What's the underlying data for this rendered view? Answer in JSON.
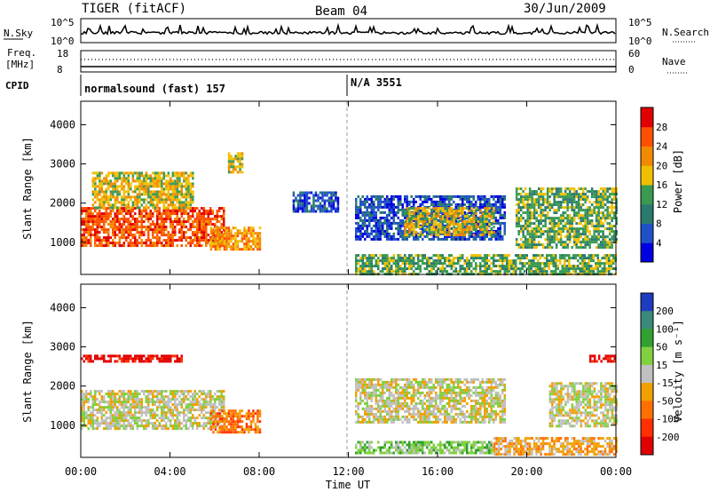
{
  "header": {
    "radar": "TIGER (fitACF)",
    "beam": "Beam 04",
    "date": "30/Jun/2009"
  },
  "status_panels": {
    "nsky_label": "N.Sky",
    "nsky_ticks": [
      "10^5",
      "10^0"
    ],
    "nsearch_label": "N.Search",
    "nsearch_ticks": [
      "10^5",
      "10^0"
    ],
    "freq_label_line1": "Freq.",
    "freq_label_line2": "[MHz]",
    "freq_ticks": [
      "18",
      "8"
    ],
    "nave_label": "Nave",
    "nave_ticks": [
      "60",
      "0"
    ],
    "cpid_label": "CPID",
    "cpid_segments": [
      {
        "text": "normalsound (fast) 157"
      },
      {
        "text": "N/A 3551"
      }
    ]
  },
  "chart_data": [
    {
      "type": "heatmap",
      "panel": "power",
      "ylabel": "Slant Range [km]",
      "xlabel": "",
      "x_ticks": [
        "00:00",
        "04:00",
        "08:00",
        "12:00",
        "16:00",
        "20:00",
        "00:00"
      ],
      "x_range_hours": [
        0,
        24
      ],
      "y_ticks": [
        "1000",
        "2000",
        "3000",
        "4000"
      ],
      "ylim": [
        180,
        4600
      ],
      "colorbar": {
        "label": "Power [dB]",
        "ticks": [
          "4",
          "8",
          "12",
          "16",
          "20",
          "24",
          "28"
        ],
        "range": [
          0,
          32
        ],
        "colors": [
          "#0000e0",
          "#1e50c8",
          "#2a7a6e",
          "#3a9a50",
          "#f0c000",
          "#f08a00",
          "#ff5000",
          "#e00000"
        ]
      },
      "regions": [
        {
          "t0": 0.0,
          "t1": 6.4,
          "r0": 900,
          "r1": 1900,
          "level": 6
        },
        {
          "t0": 0.5,
          "t1": 5.0,
          "r0": 1900,
          "r1": 2800,
          "level": 4
        },
        {
          "t0": 5.8,
          "t1": 8.0,
          "r0": 800,
          "r1": 1400,
          "level": 5
        },
        {
          "t0": 6.6,
          "t1": 7.2,
          "r0": 2800,
          "r1": 3300,
          "level": 4
        },
        {
          "t0": 12.3,
          "t1": 19.0,
          "r0": 1100,
          "r1": 2200,
          "level": 1
        },
        {
          "t0": 14.5,
          "t1": 18.5,
          "r0": 1200,
          "r1": 1900,
          "level": 4
        },
        {
          "t0": 12.3,
          "t1": 24.0,
          "r0": 200,
          "r1": 700,
          "level": 3
        },
        {
          "t0": 19.5,
          "t1": 24.0,
          "r0": 900,
          "r1": 2400,
          "level": 3
        },
        {
          "t0": 9.5,
          "t1": 11.5,
          "r0": 1800,
          "r1": 2300,
          "level": 1
        }
      ]
    },
    {
      "type": "heatmap",
      "panel": "velocity",
      "ylabel": "Slant Range [km]",
      "xlabel": "Time UT",
      "x_ticks": [
        "00:00",
        "04:00",
        "08:00",
        "12:00",
        "16:00",
        "20:00",
        "00:00"
      ],
      "x_range_hours": [
        0,
        24
      ],
      "y_ticks": [
        "1000",
        "2000",
        "3000",
        "4000"
      ],
      "ylim": [
        180,
        4600
      ],
      "colorbar": {
        "label": "Velocity [m s⁻¹]",
        "ticks": [
          "200",
          "100",
          "50",
          "15",
          "-15",
          "-50",
          "-100",
          "-200"
        ],
        "colors": [
          "#1e3cc0",
          "#3a8a7a",
          "#30a030",
          "#80d040",
          "#c0c0c0",
          "#f0a000",
          "#ff7000",
          "#ff3000",
          "#e00000"
        ]
      },
      "regions": [
        {
          "t0": 0.0,
          "t1": 6.4,
          "r0": 900,
          "r1": 1900,
          "level": 4
        },
        {
          "t0": 0.0,
          "t1": 4.5,
          "r0": 2600,
          "r1": 2800,
          "level": 8
        },
        {
          "t0": 5.8,
          "t1": 8.0,
          "r0": 800,
          "r1": 1400,
          "level": 6
        },
        {
          "t0": 12.3,
          "t1": 19.0,
          "r0": 1100,
          "r1": 2200,
          "level": 4
        },
        {
          "t0": 12.3,
          "t1": 18.5,
          "r0": 300,
          "r1": 600,
          "level": 3
        },
        {
          "t0": 18.5,
          "t1": 24.0,
          "r0": 250,
          "r1": 700,
          "level": 5
        },
        {
          "t0": 21.0,
          "t1": 24.0,
          "r0": 1000,
          "r1": 2100,
          "level": 4
        },
        {
          "t0": 22.8,
          "t1": 23.9,
          "r0": 2600,
          "r1": 2800,
          "level": 8
        }
      ]
    }
  ]
}
